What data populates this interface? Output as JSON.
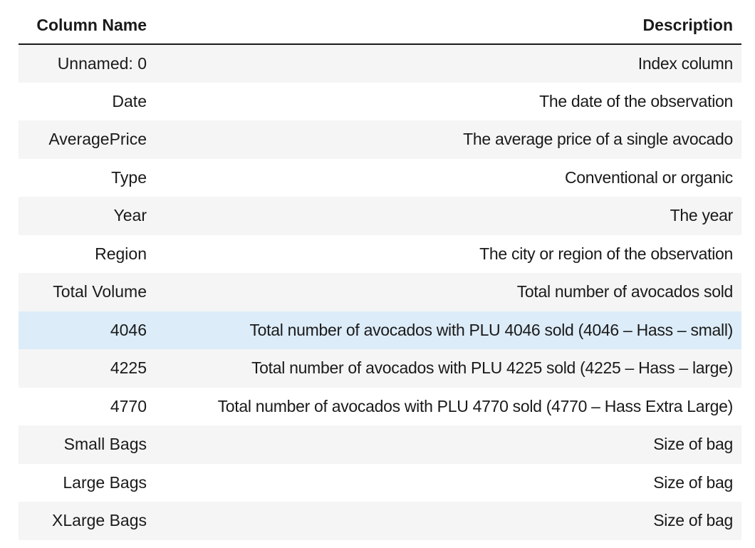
{
  "table": {
    "headers": [
      "Column Name",
      "Description"
    ],
    "rows": [
      {
        "name": "Unnamed: 0",
        "description": "Index column"
      },
      {
        "name": "Date",
        "description": "The date of the observation"
      },
      {
        "name": "AveragePrice",
        "description": "The average price of a single avocado"
      },
      {
        "name": "Type",
        "description": "Conventional or organic"
      },
      {
        "name": "Year",
        "description": "The year"
      },
      {
        "name": "Region",
        "description": "The city or region of the observation"
      },
      {
        "name": "Total Volume",
        "description": "Total number of avocados sold"
      },
      {
        "name": "4046",
        "description": "Total number of avocados with PLU 4046 sold (4046 – Hass – small)"
      },
      {
        "name": "4225",
        "description": "Total number of avocados with PLU 4225 sold (4225 – Hass – large)"
      },
      {
        "name": "4770",
        "description": "Total number of avocados with PLU 4770 sold (4770 – Hass Extra Large)"
      },
      {
        "name": "Small Bags",
        "description": "Size of bag"
      },
      {
        "name": "Large Bags",
        "description": "Size of bag"
      },
      {
        "name": "XLarge Bags",
        "description": "Size of bag"
      }
    ],
    "highlighted_row": "4046",
    "colors": {
      "stripe": "#f5f5f5",
      "highlight": "#dcecf8",
      "header_rule": "#1a1a1a"
    }
  }
}
